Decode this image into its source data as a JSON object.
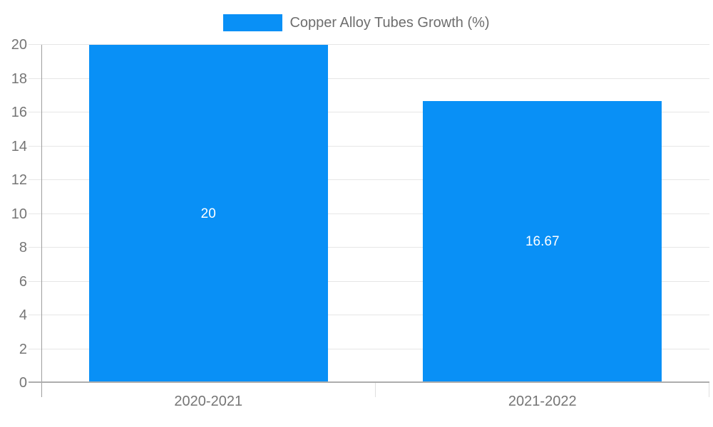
{
  "legend": {
    "label": "Copper Alloy Tubes Growth (%)"
  },
  "chart_data": {
    "type": "bar",
    "title": "",
    "xlabel": "",
    "ylabel": "",
    "series_name": "Copper Alloy Tubes Growth (%)",
    "categories": [
      "2020-2021",
      "2021-2022"
    ],
    "values": [
      20,
      16.67
    ],
    "value_labels": [
      "20",
      "16.67"
    ],
    "ylim": [
      0,
      20
    ],
    "yticks": [
      0,
      2,
      4,
      6,
      8,
      10,
      12,
      14,
      16,
      18,
      20
    ],
    "grid": true,
    "legend_position": "top",
    "colors": {
      "bar": "#0990f6",
      "value_label": "#ffffff",
      "axis_text": "#757575",
      "legend_text": "#6e6e6e",
      "gridline": "#e6e6e6",
      "axis_line": "#9e9e9e",
      "background": "#ffffff"
    }
  }
}
